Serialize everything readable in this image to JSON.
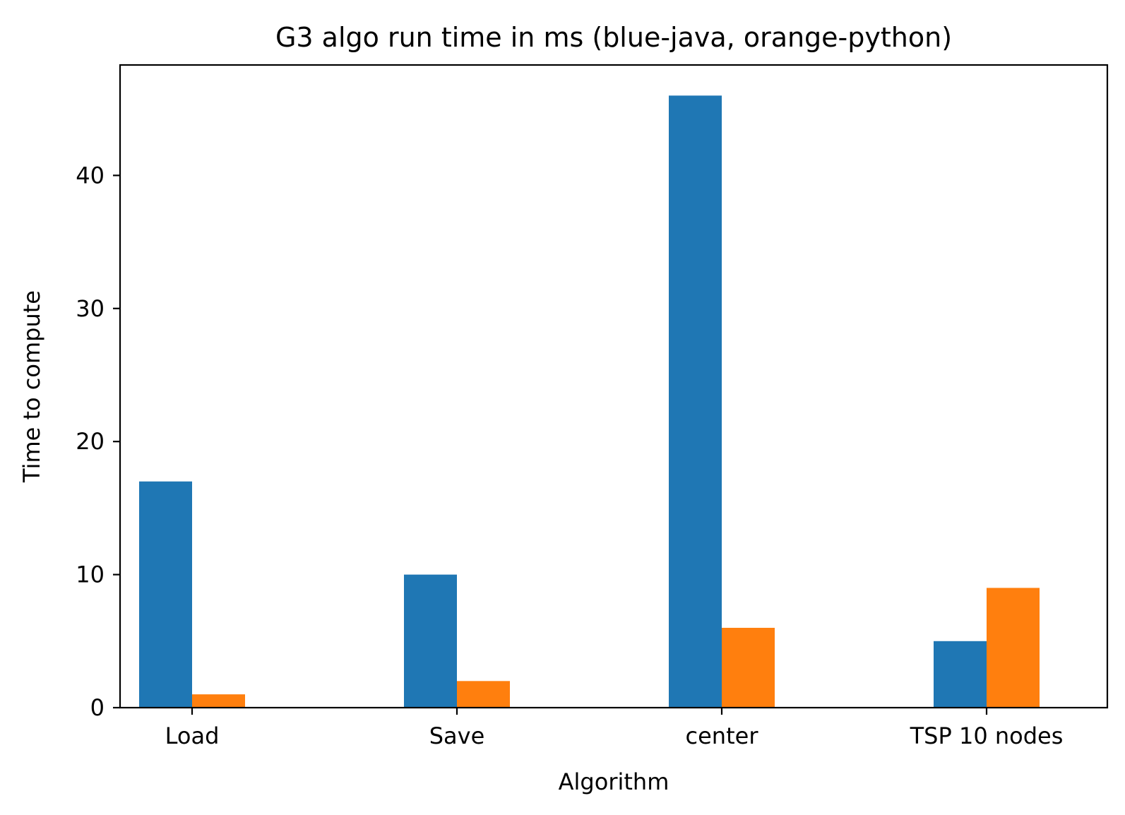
{
  "chart_data": {
    "type": "bar",
    "title": "G3 algo run time in ms (blue-java, orange-python)",
    "xlabel": "Algorithm",
    "ylabel": "Time to compute",
    "categories": [
      "Load",
      "Save",
      "center",
      "TSP 10 nodes"
    ],
    "series": [
      {
        "values": [
          17,
          10,
          46,
          5
        ],
        "color": "#1f77b4"
      },
      {
        "values": [
          1,
          2,
          6,
          9
        ],
        "color": "#ff7f0e"
      }
    ],
    "yticks": [
      0,
      10,
      20,
      30,
      40
    ],
    "ylim": [
      0,
      48.3
    ],
    "grid": false,
    "legend": "none"
  }
}
